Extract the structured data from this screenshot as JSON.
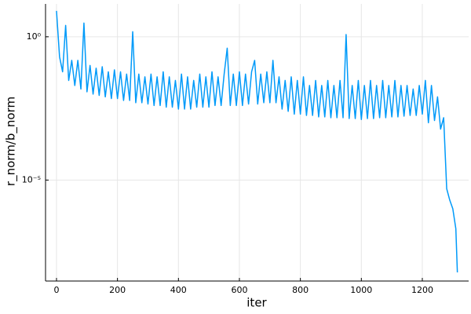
{
  "chart_data": {
    "type": "line",
    "xlabel": "iter",
    "ylabel": "r_norm/b_norm",
    "x": [
      0,
      10,
      20,
      30,
      40,
      50,
      60,
      70,
      80,
      90,
      100,
      110,
      120,
      130,
      140,
      150,
      160,
      170,
      180,
      190,
      200,
      210,
      220,
      230,
      240,
      250,
      260,
      270,
      280,
      290,
      300,
      310,
      320,
      330,
      340,
      350,
      360,
      370,
      380,
      390,
      400,
      410,
      420,
      430,
      440,
      450,
      460,
      470,
      480,
      490,
      500,
      510,
      520,
      530,
      540,
      550,
      560,
      570,
      580,
      590,
      600,
      610,
      620,
      630,
      640,
      650,
      660,
      670,
      680,
      690,
      700,
      710,
      720,
      730,
      740,
      750,
      760,
      770,
      780,
      790,
      800,
      810,
      820,
      830,
      840,
      850,
      860,
      870,
      880,
      890,
      900,
      910,
      920,
      930,
      940,
      950,
      960,
      970,
      980,
      990,
      1000,
      1010,
      1020,
      1030,
      1040,
      1050,
      1060,
      1070,
      1080,
      1090,
      1100,
      1110,
      1120,
      1130,
      1140,
      1150,
      1160,
      1170,
      1180,
      1190,
      1200,
      1210,
      1220,
      1230,
      1240,
      1250,
      1260,
      1270,
      1280,
      1290,
      1300,
      1310,
      1315
    ],
    "values": [
      8,
      0.2,
      0.06,
      2.5,
      0.03,
      0.15,
      0.02,
      0.15,
      0.015,
      3,
      0.012,
      0.1,
      0.01,
      0.08,
      0.009,
      0.09,
      0.008,
      0.06,
      0.007,
      0.07,
      0.007,
      0.06,
      0.006,
      0.05,
      0.006,
      1.5,
      0.005,
      0.05,
      0.005,
      0.04,
      0.0045,
      0.05,
      0.004,
      0.04,
      0.004,
      0.06,
      0.0035,
      0.04,
      0.0035,
      0.03,
      0.003,
      0.05,
      0.003,
      0.04,
      0.003,
      0.03,
      0.0035,
      0.05,
      0.0035,
      0.04,
      0.0035,
      0.06,
      0.004,
      0.04,
      0.004,
      0.05,
      0.4,
      0.004,
      0.05,
      0.004,
      0.06,
      0.004,
      0.05,
      0.0045,
      0.06,
      0.15,
      0.0045,
      0.05,
      0.005,
      0.06,
      0.005,
      0.15,
      0.005,
      0.04,
      0.003,
      0.03,
      0.0025,
      0.04,
      0.002,
      0.03,
      0.002,
      0.04,
      0.0018,
      0.02,
      0.0018,
      0.03,
      0.0016,
      0.02,
      0.0016,
      0.03,
      0.0015,
      0.02,
      0.0015,
      0.03,
      0.0015,
      1.2,
      0.0014,
      0.02,
      0.0014,
      0.03,
      0.0013,
      0.02,
      0.0014,
      0.03,
      0.0014,
      0.02,
      0.0015,
      0.03,
      0.0015,
      0.02,
      0.0016,
      0.03,
      0.0016,
      0.02,
      0.0017,
      0.02,
      0.0018,
      0.015,
      0.0018,
      0.02,
      0.002,
      0.03,
      0.001,
      0.02,
      0.0012,
      0.008,
      0.0006,
      0.0015,
      5e-06,
      2e-06,
      1e-06,
      2e-07,
      6e-09
    ],
    "color": "#009af9",
    "xlim": [
      -36,
      1352
    ],
    "xticks": [
      0,
      200,
      400,
      600,
      800,
      1000,
      1200
    ],
    "ylim": [
      3e-09,
      14
    ],
    "yticks": [
      {
        "value": 1,
        "label": "10⁰"
      },
      {
        "value": 1e-05,
        "label": "10⁻⁵"
      }
    ],
    "ylog": true,
    "grid": true
  }
}
